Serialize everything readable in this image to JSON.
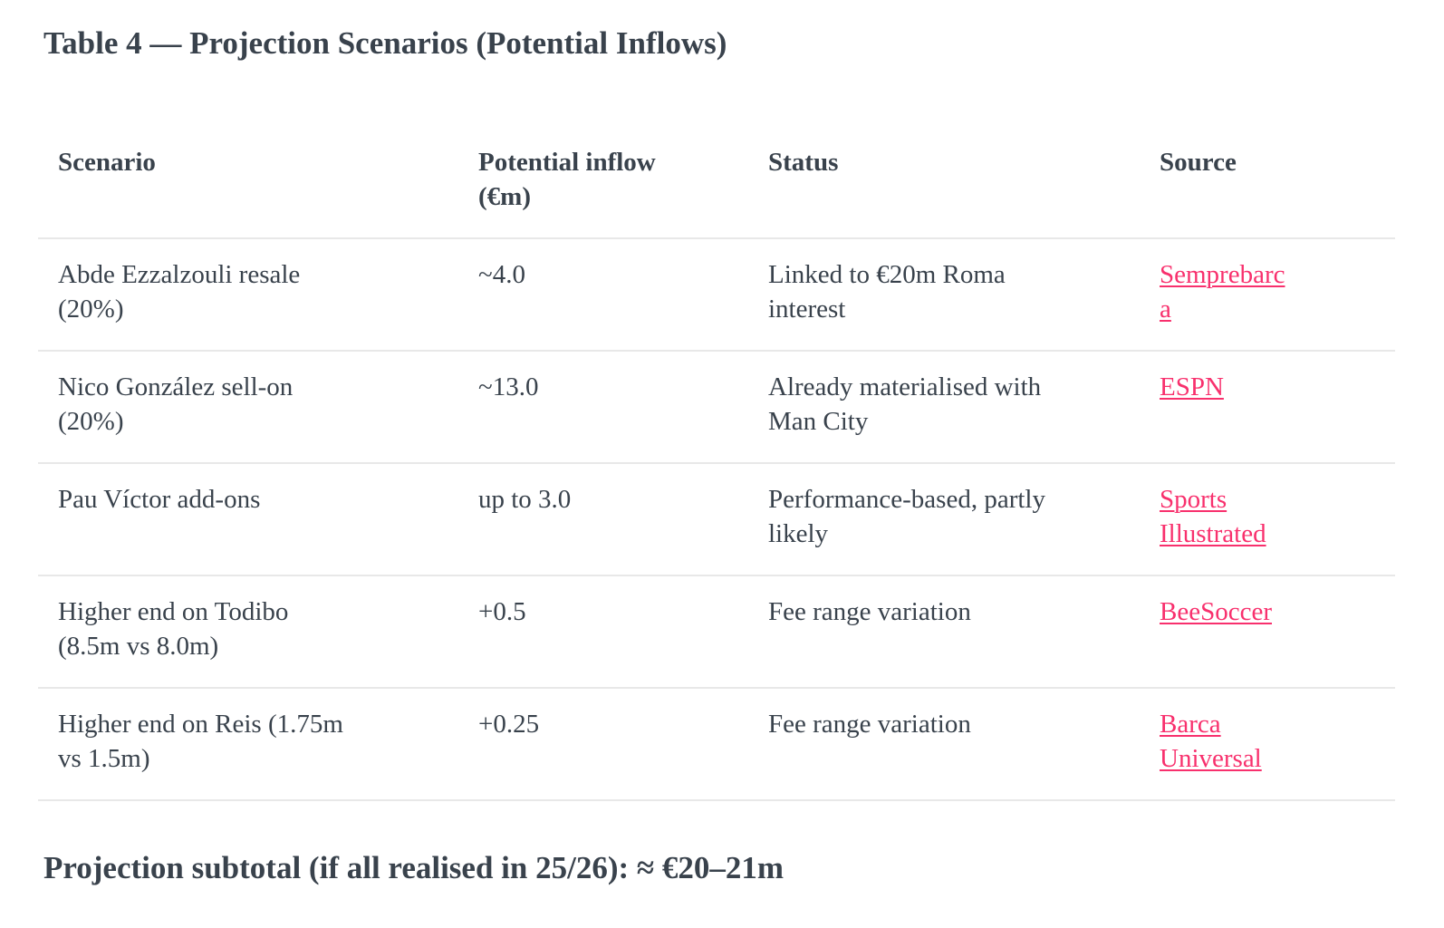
{
  "page": {
    "title": "Table 4 — Projection Scenarios (Potential Inflows)",
    "subtotal": "Projection subtotal (if all realised in 25/26): ≈ €20–21m"
  },
  "colors": {
    "text": "#39424c",
    "link": "#f8306d",
    "divider": "#e8e8e8",
    "background": "#ffffff"
  },
  "table": {
    "columns": [
      "Scenario",
      "Potential inflow (€m)",
      "Status",
      "Source"
    ],
    "rows": [
      {
        "scenario": "Abde Ezzalzouli resale (20%)",
        "inflow": "~4.0",
        "status": "Linked to €20m Roma interest",
        "source": "Semprebarca"
      },
      {
        "scenario": "Nico González sell-on (20%)",
        "inflow": "~13.0",
        "status": "Already materialised with Man City",
        "source": "ESPN"
      },
      {
        "scenario": "Pau Víctor add-ons",
        "inflow": "up to 3.0",
        "status": "Performance-based, partly likely",
        "source": "Sports Illustrated"
      },
      {
        "scenario": "Higher end on Todibo (8.5m vs 8.0m)",
        "inflow": "+0.5",
        "status": "Fee range variation",
        "source": "BeeSoccer"
      },
      {
        "scenario": "Higher end on Reis (1.75m vs 1.5m)",
        "inflow": "+0.25",
        "status": "Fee range variation",
        "source": "Barca Universal"
      }
    ]
  }
}
